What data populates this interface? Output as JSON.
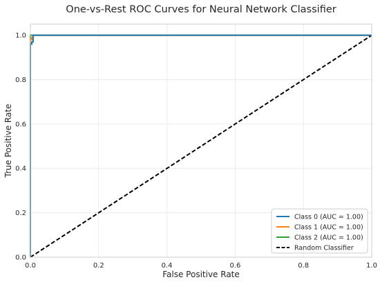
{
  "chart_data": {
    "type": "line",
    "title": "One-vs-Rest ROC Curves for Neural Network Classifier",
    "xlabel": "False Positive Rate",
    "ylabel": "True Positive Rate",
    "xlim": [
      0.0,
      1.0
    ],
    "ylim": [
      0.0,
      1.05
    ],
    "xticks": [
      0.0,
      0.2,
      0.4,
      0.6,
      0.8,
      1.0
    ],
    "yticks": [
      0.0,
      0.2,
      0.4,
      0.6,
      0.8,
      1.0
    ],
    "xtick_labels": [
      "0.0",
      "0.2",
      "0.4",
      "0.6",
      "0.8",
      "1.0"
    ],
    "ytick_labels": [
      "0.0",
      "0.2",
      "0.4",
      "0.6",
      "0.8",
      "1.0"
    ],
    "grid": true,
    "legend_position": "bottom-right",
    "series": [
      {
        "name": "Class 0 (AUC = 1.00)",
        "color": "#1f77b4",
        "style": "solid",
        "x": [
          0.0,
          0.0,
          0.0,
          0.004,
          0.004,
          0.008,
          0.008,
          1.0
        ],
        "y": [
          0.0,
          0.95,
          0.96,
          0.96,
          0.97,
          0.97,
          1.0,
          1.0
        ]
      },
      {
        "name": "Class 1 (AUC = 1.00)",
        "color": "#ff7f0e",
        "style": "solid",
        "x": [
          0.0,
          0.0,
          0.004,
          0.004,
          0.008,
          0.008,
          1.0
        ],
        "y": [
          0.0,
          0.98,
          0.98,
          0.99,
          0.99,
          1.0,
          1.0
        ]
      },
      {
        "name": "Class 2 (AUC = 1.00)",
        "color": "#2ca02c",
        "style": "solid",
        "x": [
          0.0,
          0.0,
          1.0
        ],
        "y": [
          0.0,
          1.0,
          1.0
        ]
      },
      {
        "name": "Random Classifier",
        "color": "#000000",
        "style": "dashed",
        "x": [
          0.0,
          1.0
        ],
        "y": [
          0.0,
          1.0
        ]
      }
    ]
  }
}
